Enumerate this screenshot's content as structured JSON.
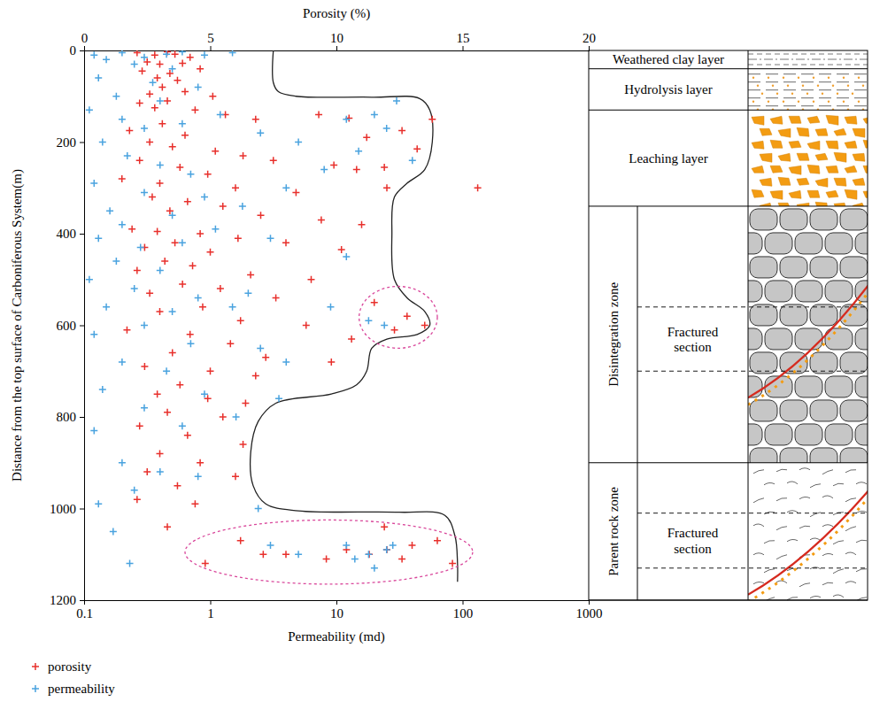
{
  "chart_data": {
    "type": "scatter",
    "x_label": "Permeability (md)",
    "x2_label": "Porosity (%)",
    "y_label": "Distance from the top surface of Carboniferous System(m)",
    "log": "x",
    "xlim": [
      0.1,
      1000
    ],
    "xticks": [
      0.1,
      1,
      10,
      100,
      1000
    ],
    "x2lim": [
      0,
      20
    ],
    "x2ticks": [
      0,
      5,
      10,
      15,
      20
    ],
    "ylim": [
      1200,
      0
    ],
    "yticks": [
      0,
      200,
      400,
      600,
      800,
      1000,
      1200
    ],
    "legend": "bottom-left",
    "series": [
      {
        "name": "porosity",
        "color": "#e8302c",
        "marker": "plus",
        "axis": "x2",
        "x": [
          2.1,
          2.8,
          3.3,
          3.6,
          4.2,
          2.5,
          3.0,
          3.9,
          2.3,
          3.4,
          4.6,
          2.9,
          3.7,
          3.1,
          2.6,
          4.0,
          5.1,
          3.3,
          2.2,
          2.8,
          4.4,
          5.6,
          6.8,
          9.3,
          10.5,
          13.8,
          12.6,
          11.2,
          13.2,
          3.1,
          1.8,
          4.0,
          2.6,
          3.5,
          5.2,
          6.3,
          7.5,
          9.9,
          10.8,
          11.9,
          2.2,
          3.8,
          4.9,
          1.5,
          3.0,
          6.0,
          8.4,
          12.0,
          15.6,
          2.7,
          4.1,
          5.5,
          3.4,
          7.0,
          9.4,
          11.0,
          1.9,
          2.9,
          4.6,
          6.1,
          3.6,
          2.4,
          5.0,
          8.0,
          10.2,
          3.2,
          4.3,
          2.1,
          6.6,
          9.0,
          3.9,
          5.4,
          2.6,
          7.6,
          11.5,
          4.7,
          12.8,
          13.5,
          12.3,
          3.0,
          6.2,
          8.8,
          1.7,
          4.2,
          10.6,
          5.8,
          3.5,
          7.2,
          9.8,
          2.4,
          5.0,
          6.8,
          3.8,
          2.9,
          4.9,
          6.4,
          3.3,
          5.5,
          2.2,
          4.1,
          6.3,
          3.0,
          4.6,
          2.5,
          6.0,
          3.7,
          2.1,
          4.4,
          3.3,
          8.0,
          9.6,
          10.4,
          11.3,
          12.0,
          13.0,
          14.0,
          14.6,
          12.6,
          11.9,
          6.2,
          4.8,
          7.1
        ],
        "values": [
          5,
          10,
          3,
          8,
          15,
          25,
          30,
          28,
          45,
          50,
          40,
          60,
          65,
          80,
          95,
          90,
          100,
          110,
          115,
          125,
          130,
          140,
          150,
          140,
          148,
          150,
          175,
          190,
          215,
          160,
          175,
          185,
          200,
          210,
          220,
          230,
          240,
          250,
          260,
          255,
          240,
          255,
          270,
          280,
          290,
          300,
          310,
          300,
          300,
          320,
          330,
          340,
          350,
          360,
          370,
          380,
          390,
          395,
          400,
          410,
          420,
          430,
          440,
          420,
          435,
          460,
          470,
          480,
          490,
          500,
          510,
          520,
          530,
          540,
          550,
          560,
          580,
          600,
          610,
          570,
          590,
          600,
          610,
          620,
          630,
          640,
          660,
          670,
          680,
          690,
          700,
          710,
          730,
          750,
          760,
          770,
          790,
          800,
          820,
          840,
          860,
          880,
          900,
          920,
          930,
          950,
          980,
          990,
          1040,
          1100,
          1110,
          1090,
          1100,
          1090,
          1080,
          1070,
          1120,
          1110,
          1040,
          1070,
          1120,
          1100
        ]
      },
      {
        "name": "permeability",
        "color": "#4aa3df",
        "marker": "plus",
        "axis": "x",
        "x": [
          0.12,
          0.15,
          0.2,
          0.3,
          0.45,
          0.6,
          0.9,
          1.5,
          0.25,
          0.5,
          0.13,
          0.35,
          0.8,
          0.18,
          0.4,
          0.11,
          0.2,
          0.3,
          0.6,
          1.2,
          2.5,
          5,
          12,
          20,
          30,
          25,
          15,
          8,
          40,
          4,
          0.14,
          0.22,
          0.4,
          0.7,
          0.12,
          0.3,
          0.9,
          1.8,
          0.16,
          0.5,
          0.2,
          1.1,
          0.13,
          0.28,
          0.6,
          3.0,
          12,
          0.18,
          0.4,
          0.11,
          0.25,
          0.8,
          2.0,
          0.15,
          0.5,
          1.5,
          9,
          24,
          18,
          0.3,
          0.12,
          0.7,
          2.5,
          4,
          0.2,
          0.45,
          0.14,
          0.9,
          3.5,
          0.3,
          0.12,
          0.6,
          1.6,
          0.2,
          0.4,
          0.8,
          0.25,
          0.13,
          2.4,
          0.17,
          0.23,
          3,
          5,
          12,
          18,
          25,
          28,
          20,
          14
        ],
        "values": [
          10,
          20,
          5,
          15,
          8,
          3,
          10,
          5,
          30,
          40,
          60,
          70,
          80,
          100,
          110,
          130,
          150,
          170,
          160,
          140,
          180,
          200,
          150,
          140,
          110,
          170,
          220,
          260,
          240,
          300,
          200,
          230,
          250,
          270,
          290,
          310,
          320,
          340,
          350,
          360,
          380,
          390,
          410,
          430,
          420,
          410,
          450,
          460,
          480,
          500,
          520,
          540,
          530,
          560,
          570,
          560,
          560,
          600,
          590,
          600,
          620,
          640,
          650,
          680,
          680,
          700,
          740,
          750,
          760,
          780,
          830,
          820,
          800,
          900,
          920,
          930,
          960,
          990,
          1000,
          1050,
          1120,
          1080,
          1100,
          1080,
          1100,
          1090,
          1080,
          1130,
          1110
        ]
      }
    ],
    "envelope": {
      "x": [
        7.5,
        7.5,
        7.7,
        8.4,
        11.4,
        13.3,
        13.7,
        13.8,
        13.5,
        12.8,
        12.3,
        12.2,
        12.3,
        12.8,
        13.5,
        13.7,
        13.2,
        12.0,
        11.4,
        11.2,
        10.8,
        9.8,
        7.6,
        6.9,
        6.6,
        6.7,
        7.2,
        8.5,
        12.5,
        14.3,
        14.7,
        14.8,
        14.8
      ],
      "y": [
        0,
        70,
        90,
        100,
        102,
        105,
        130,
        200,
        260,
        290,
        320,
        400,
        500,
        540,
        570,
        600,
        620,
        630,
        650,
        700,
        730,
        750,
        770,
        810,
        880,
        950,
        990,
        1005,
        1008,
        1015,
        1060,
        1120,
        1160
      ]
    },
    "highlights": [
      {
        "x": [
          10.9,
          14.0
        ],
        "y": [
          515,
          650
        ]
      },
      {
        "x": [
          4.0,
          15.4
        ],
        "y": [
          1025,
          1165
        ]
      }
    ],
    "layers": [
      {
        "label": "Weathered clay layer",
        "from": 0,
        "to": 40
      },
      {
        "label": "Hydrolysis layer",
        "from": 40,
        "to": 130
      },
      {
        "label": "Leaching layer",
        "from": 130,
        "to": 340
      },
      {
        "label": "Disintegration zone",
        "from": 340,
        "to": 900,
        "section": {
          "label": "Fractured section",
          "from": 560,
          "to": 700
        }
      },
      {
        "label": "Parent rock zone",
        "from": 900,
        "to": 1200,
        "section": {
          "label": "Fractured section",
          "from": 1010,
          "to": 1130
        }
      }
    ]
  }
}
